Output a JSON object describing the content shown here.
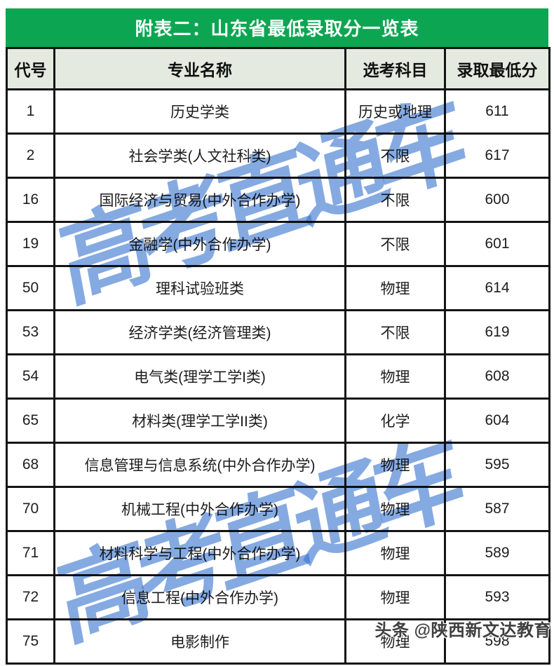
{
  "title_bar": {
    "text": "附表二：山东省最低录取分一览表",
    "bg_color": "#0ca652",
    "text_color": "#ffffff"
  },
  "table": {
    "header_bg": "#e5eae1",
    "border_color": "#141414",
    "columns": [
      {
        "key": "code",
        "label": "代号"
      },
      {
        "key": "major",
        "label": "专业名称"
      },
      {
        "key": "subjects",
        "label": "选考科目"
      },
      {
        "key": "min_score",
        "label": "录取最低分"
      }
    ],
    "rows": [
      {
        "code": "1",
        "major": "历史学类",
        "subjects": "历史或地理",
        "min_score": "611"
      },
      {
        "code": "2",
        "major": "社会学类(人文社科类)",
        "subjects": "不限",
        "min_score": "617"
      },
      {
        "code": "16",
        "major": "国际经济与贸易(中外合作办学)",
        "subjects": "不限",
        "min_score": "600"
      },
      {
        "code": "19",
        "major": "金融学(中外合作办学)",
        "subjects": "不限",
        "min_score": "601"
      },
      {
        "code": "50",
        "major": "理科试验班类",
        "subjects": "物理",
        "min_score": "614"
      },
      {
        "code": "53",
        "major": "经济学类(经济管理类)",
        "subjects": "不限",
        "min_score": "619"
      },
      {
        "code": "54",
        "major": "电气类(理学工学I类)",
        "subjects": "物理",
        "min_score": "608"
      },
      {
        "code": "65",
        "major": "材料类(理学工学II类)",
        "subjects": "化学",
        "min_score": "604"
      },
      {
        "code": "68",
        "major": "信息管理与信息系统(中外合作办学)",
        "subjects": "物理",
        "min_score": "595"
      },
      {
        "code": "70",
        "major": "机械工程(中外合作办学)",
        "subjects": "物理",
        "min_score": "587"
      },
      {
        "code": "71",
        "major": "材料科学与工程(中外合作办学)",
        "subjects": "物理",
        "min_score": "589"
      },
      {
        "code": "72",
        "major": "信息工程(中外合作办学)",
        "subjects": "物理",
        "min_score": "593"
      },
      {
        "code": "75",
        "major": "电影制作",
        "subjects": "物理",
        "min_score": "598"
      }
    ]
  },
  "watermarks": {
    "diagonal_text": "高考直通车",
    "diagonal_color": "rgba(58,118,208,0.62)",
    "corner_text": "头条 @陕西新文达教育",
    "corner_color": "#3f3f3f"
  }
}
